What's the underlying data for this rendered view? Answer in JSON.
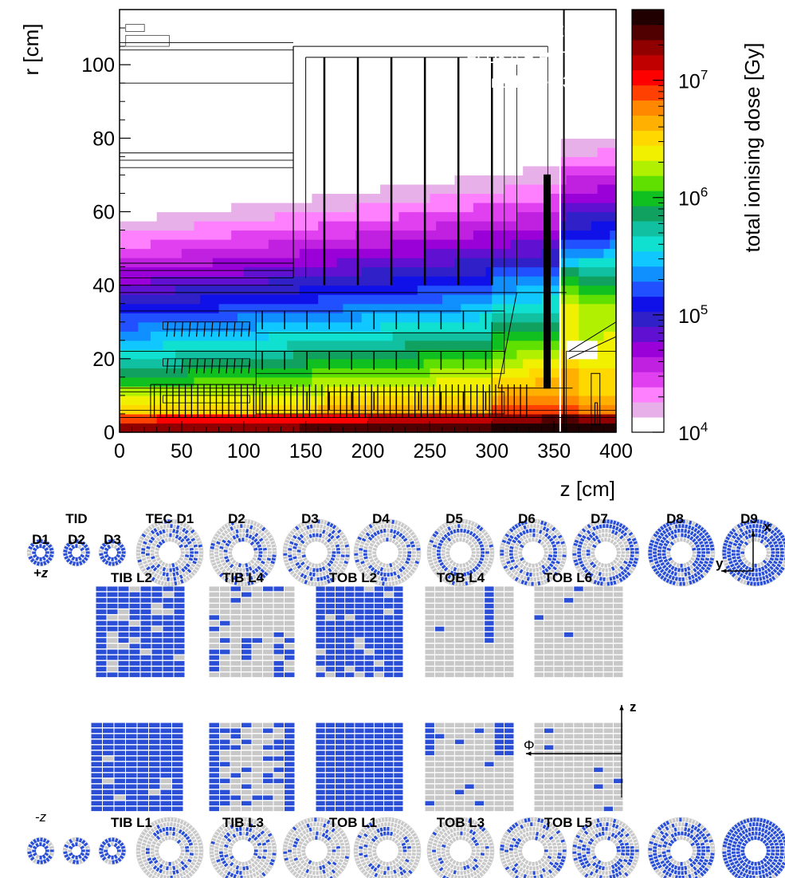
{
  "chart_data": [
    {
      "type": "heatmap",
      "annotation": {
        "brand": "ATLAS",
        "line1_rest": "Simulation Internal",
        "line2": "FLUKA + PYTHIA8",
        "line3": "ITk Inclined Step 3.1Q6"
      },
      "xlabel": "z [cm]",
      "ylabel": "r [cm]",
      "xlim": [
        0,
        400
      ],
      "ylim": [
        0,
        115
      ],
      "xticks": [
        "0",
        "50",
        "100",
        "150",
        "200",
        "250",
        "300",
        "350",
        "400"
      ],
      "xtick_values": [
        0,
        50,
        100,
        150,
        200,
        250,
        300,
        350,
        400
      ],
      "yticks": [
        "0",
        "20",
        "40",
        "60",
        "80",
        "100"
      ],
      "ytick_values": [
        0,
        20,
        40,
        60,
        80,
        100
      ],
      "zlabel": "total ionising dose  [Gy]",
      "zscale": "log",
      "zlim": [
        10000,
        40000000
      ],
      "zticks": [
        {
          "base": "10",
          "exp": "4",
          "value": 10000
        },
        {
          "base": "10",
          "exp": "5",
          "value": 100000
        },
        {
          "base": "10",
          "exp": "6",
          "value": 1000000
        },
        {
          "base": "10",
          "exp": "7",
          "value": 10000000
        }
      ],
      "palette": [
        "#ffffff",
        "#e8b0e8",
        "#ff80ff",
        "#e040f0",
        "#c020e0",
        "#9a00d8",
        "#6010d0",
        "#3020c8",
        "#1010e8",
        "#2050ff",
        "#1090ff",
        "#10c8ff",
        "#10e0d0",
        "#10c0a0",
        "#10a060",
        "#10c020",
        "#60e000",
        "#b0f000",
        "#f0f000",
        "#ffd800",
        "#ffb000",
        "#ff8800",
        "#ff4000",
        "#ff0000",
        "#c00000",
        "#900000",
        "#500000",
        "#200000"
      ],
      "dose_model": "log10 dose falls off with radius and varies with z; ~1e7 Gy near the beam pipe, ~1e5 Gy at r = 40 cm, ~4e4 Gy at r = 110 cm"
    },
    {
      "type": "other",
      "description_labels": {
        "tid": "TID",
        "tec_d1": "TEC D1",
        "top_disks": [
          "D1",
          "D2",
          "D3"
        ],
        "tec_disks": [
          "D2",
          "D3",
          "D4",
          "D5",
          "D6",
          "D7",
          "D8",
          "D9"
        ],
        "plus_z": "+z",
        "minus_z": "-z",
        "top_barrels": [
          "TIB L2",
          "TIB L4",
          "TOB L2",
          "TOB L4",
          "TOB L6"
        ],
        "bottom_barrels": [
          "TIB L1",
          "TIB L3",
          "TOB L1",
          "TOB L3",
          "TOB L5"
        ],
        "axis_x": "x",
        "axis_y": "y",
        "axis_z": "z",
        "axis_phi": "Φ"
      },
      "colors": {
        "module_off": "#c8c8c8",
        "module_on": "#2a4fd6"
      }
    }
  ]
}
